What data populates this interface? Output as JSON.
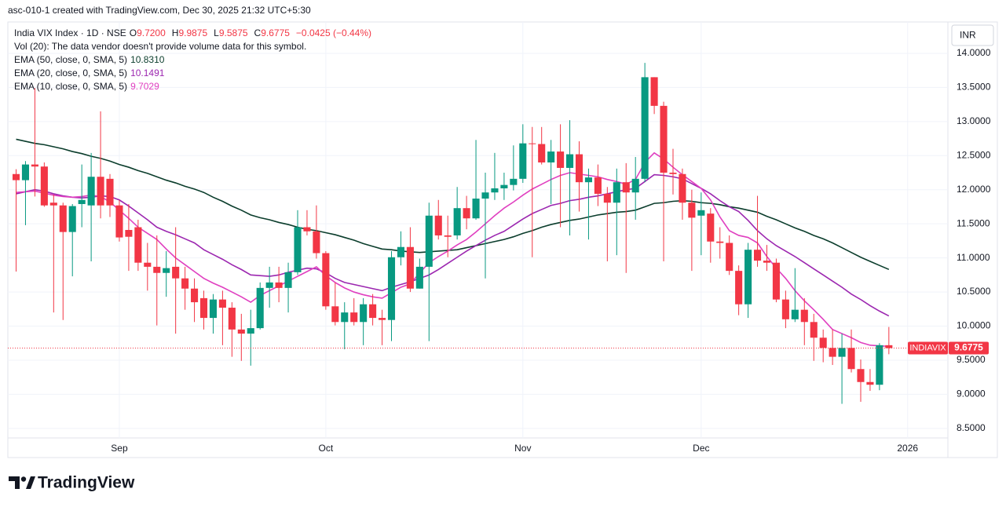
{
  "credit": "asc-010-1 created with TradingView.com, Dec 30, 2025 21:32 UTC+5:30",
  "brand": "TradingView",
  "chart_data": {
    "type": "candlestick",
    "header": {
      "symbol": "India VIX Index · 1D · NSE",
      "ohlc_keys": [
        "O",
        "H",
        "L",
        "C"
      ],
      "ohlc_values": [
        "9.7200",
        "9.9875",
        "9.5875",
        "9.6775"
      ],
      "change": "−0.0425 (−0.44%)",
      "volume_note": "Vol (20): The data vendor doesn't provide volume data for this symbol."
    },
    "currency": "INR",
    "ticker": "INDIAVIX",
    "last_label": "9.6775",
    "up_color": "#089981",
    "down_color": "#f23645",
    "grid": true,
    "xlim": [
      -0.88,
      99.29
    ],
    "ylim": [
      8.36,
      14.46
    ],
    "xticks": [
      {
        "value": 11,
        "label": "Sep"
      },
      {
        "value": 33,
        "label": "Oct"
      },
      {
        "value": 54,
        "label": "Nov"
      },
      {
        "value": 73,
        "label": "Dec"
      },
      {
        "value": 95,
        "label": "2026"
      }
    ],
    "yticks": [
      {
        "value": 14,
        "label": "14.0000"
      },
      {
        "value": 13.5,
        "label": "13.5000"
      },
      {
        "value": 13,
        "label": "13.0000"
      },
      {
        "value": 12.5,
        "label": "12.5000"
      },
      {
        "value": 12,
        "label": "12.0000"
      },
      {
        "value": 11.5,
        "label": "11.5000"
      },
      {
        "value": 11,
        "label": "11.0000"
      },
      {
        "value": 10.5,
        "label": "10.5000"
      },
      {
        "value": 10,
        "label": "10.0000"
      },
      {
        "value": 9.5,
        "label": "9.5000"
      },
      {
        "value": 9,
        "label": "9.0000"
      },
      {
        "value": 8.5,
        "label": "8.5000"
      }
    ],
    "open": [
      12.23,
      12.14,
      12.37,
      12.34,
      11.81,
      11.77,
      11.38,
      11.79,
      11.77,
      12.19,
      12.16,
      11.77,
      11.41,
      11.45,
      10.93,
      10.87,
      10.78,
      10.87,
      10.7,
      10.55,
      10.41,
      10.12,
      10.39,
      10.27,
      9.95,
      9.89,
      9.97,
      10.56,
      10.64,
      10.56,
      10.79,
      11.45,
      11.39,
      11.07,
      10.29,
      10.06,
      10.2,
      10.06,
      10.32,
      10.12,
      10.09,
      11.01,
      11.16,
      10.55,
      10.87,
      11.62,
      11.33,
      11.33,
      11.73,
      11.58,
      11.87,
      11.96,
      12.02,
      12.07,
      12.16,
      12.68,
      12.67,
      12.4,
      12.56,
      12.32,
      12.52,
      12.11,
      12.18,
      11.94,
      11.81,
      12.11,
      11.96,
      12.16,
      13.65,
      13.23,
      12.25,
      12.23,
      11.81,
      11.62,
      11.65,
      11.24,
      11.22,
      10.81,
      10.32,
      11.12,
      10.96,
      10.93,
      10.39,
      10.1,
      10.24,
      10.06,
      9.83,
      9.68,
      9.55,
      9.68,
      9.37,
      9.18,
      9.14,
      9.72
    ],
    "high": [
      12.3,
      12.42,
      13.49,
      12.4,
      11.93,
      11.81,
      11.79,
      12.37,
      12.54,
      13.15,
      12.23,
      11.85,
      11.79,
      11.56,
      11.22,
      11.33,
      11.1,
      11.45,
      10.87,
      10.7,
      10.52,
      10.47,
      10.52,
      10.35,
      10.18,
      10.24,
      10.64,
      10.87,
      10.87,
      10.93,
      11.7,
      11.7,
      11.77,
      11.1,
      10.64,
      10.35,
      10.41,
      10.41,
      10.47,
      10.24,
      11.1,
      11.39,
      11.45,
      10.99,
      11.81,
      11.85,
      11.62,
      12.04,
      11.91,
      12.73,
      12.25,
      12.54,
      12.25,
      12.65,
      12.96,
      12.92,
      12.92,
      12.73,
      12.96,
      13.02,
      12.71,
      12.31,
      12.37,
      12.04,
      12.31,
      12.39,
      12.48,
      13.86,
      13.65,
      13.29,
      12.6,
      12.31,
      12.0,
      11.96,
      11.73,
      11.45,
      11.33,
      10.89,
      11.22,
      11.91,
      11.19,
      10.99,
      10.52,
      10.85,
      10.41,
      10.18,
      9.95,
      9.95,
      9.89,
      9.95,
      9.51,
      9.37,
      9.75,
      9.9875
    ],
    "low": [
      10.8,
      11.48,
      11.9,
      11.75,
      10.2,
      10.09,
      10.73,
      11.45,
      10.95,
      11.58,
      11.6,
      11.24,
      10.81,
      10.81,
      10.52,
      10.01,
      10.43,
      9.89,
      10.24,
      10.06,
      9.95,
      9.89,
      9.72,
      9.55,
      9.49,
      9.42,
      9.95,
      10.27,
      10.35,
      10.2,
      10.75,
      11.33,
      10.99,
      10.24,
      10.01,
      9.66,
      10.01,
      9.72,
      10.01,
      9.72,
      9.78,
      10.89,
      10.5,
      10.55,
      9.78,
      11.27,
      11.01,
      11.27,
      11.42,
      11.56,
      10.7,
      11.85,
      11.85,
      11.99,
      12.1,
      11.01,
      12.37,
      11.79,
      11.45,
      11.33,
      11.68,
      11.27,
      11.76,
      10.95,
      11.04,
      10.78,
      11.56,
      12.11,
      13.11,
      10.95,
      11.93,
      11.56,
      10.81,
      11.04,
      10.93,
      10.99,
      10.75,
      10.16,
      10.12,
      10.87,
      10.81,
      10.35,
      9.97,
      10.06,
      9.72,
      9.49,
      9.47,
      9.43,
      8.86,
      9.32,
      8.89,
      9.05,
      9.06,
      9.5875
    ],
    "close": [
      12.14,
      12.37,
      12.34,
      11.77,
      11.77,
      11.38,
      11.76,
      11.85,
      12.19,
      11.77,
      11.77,
      11.3,
      11.31,
      10.93,
      10.87,
      10.78,
      10.85,
      10.7,
      10.55,
      10.35,
      10.12,
      10.39,
      10.27,
      9.95,
      9.89,
      9.97,
      10.56,
      10.64,
      10.56,
      10.79,
      11.45,
      11.39,
      11.07,
      10.29,
      10.06,
      10.2,
      10.06,
      10.32,
      10.12,
      10.09,
      11.01,
      11.16,
      10.55,
      10.87,
      11.62,
      11.33,
      11.31,
      11.73,
      11.58,
      11.87,
      11.96,
      12.02,
      12.07,
      12.16,
      12.68,
      12.67,
      12.4,
      12.56,
      12.32,
      12.52,
      12.11,
      12.18,
      11.94,
      11.81,
      12.11,
      11.96,
      12.16,
      13.65,
      13.23,
      12.25,
      12.23,
      11.81,
      11.59,
      11.7,
      11.24,
      11.22,
      10.81,
      10.32,
      11.12,
      10.96,
      10.93,
      10.39,
      10.1,
      10.24,
      10.06,
      9.83,
      9.68,
      9.55,
      9.68,
      9.37,
      9.18,
      9.14,
      9.72,
      9.6775
    ],
    "series": [
      {
        "name": "EMA (50, close, 0, SMA, 5)",
        "color": "#0b3d2c",
        "last_label": "10.8310",
        "values": [
          12.74,
          12.71,
          12.68,
          12.66,
          12.63,
          12.6,
          12.56,
          12.53,
          12.49,
          12.46,
          12.42,
          12.37,
          12.33,
          12.28,
          12.24,
          12.19,
          12.14,
          12.1,
          12.05,
          12.01,
          11.96,
          11.89,
          11.83,
          11.76,
          11.7,
          11.63,
          11.59,
          11.56,
          11.52,
          11.49,
          11.45,
          11.42,
          11.4,
          11.37,
          11.34,
          11.3,
          11.26,
          11.21,
          11.17,
          11.13,
          11.12,
          11.1,
          11.09,
          11.08,
          11.09,
          11.1,
          11.11,
          11.12,
          11.15,
          11.18,
          11.21,
          11.24,
          11.27,
          11.31,
          11.36,
          11.4,
          11.45,
          11.49,
          11.52,
          11.55,
          11.57,
          11.6,
          11.63,
          11.65,
          11.67,
          11.68,
          11.7,
          11.75,
          11.8,
          11.81,
          11.83,
          11.84,
          11.83,
          11.81,
          11.8,
          11.78,
          11.75,
          11.73,
          11.7,
          11.67,
          11.61,
          11.56,
          11.5,
          11.44,
          11.39,
          11.33,
          11.28,
          11.22,
          11.15,
          11.08,
          11.01,
          10.95,
          10.89,
          10.831
        ]
      },
      {
        "name": "EMA (20, close, 0, SMA, 5)",
        "color": "#9c27b0",
        "last_label": "10.1491",
        "values": [
          11.94,
          11.97,
          12.0,
          11.98,
          11.94,
          11.91,
          11.89,
          11.88,
          11.89,
          11.91,
          11.9,
          11.85,
          11.76,
          11.66,
          11.56,
          11.45,
          11.39,
          11.34,
          11.28,
          11.22,
          11.12,
          11.05,
          10.98,
          10.9,
          10.83,
          10.75,
          10.74,
          10.73,
          10.75,
          10.79,
          10.82,
          10.85,
          10.84,
          10.78,
          10.7,
          10.64,
          10.61,
          10.58,
          10.55,
          10.52,
          10.57,
          10.61,
          10.65,
          10.7,
          10.75,
          10.83,
          10.92,
          11.01,
          11.1,
          11.18,
          11.26,
          11.33,
          11.39,
          11.48,
          11.57,
          11.65,
          11.71,
          11.77,
          11.8,
          11.84,
          11.86,
          11.89,
          11.91,
          11.94,
          11.97,
          12.0,
          12.02,
          12.12,
          12.22,
          12.21,
          12.19,
          12.16,
          12.09,
          12.02,
          11.94,
          11.84,
          11.75,
          11.68,
          11.55,
          11.4,
          11.28,
          11.18,
          11.1,
          11.02,
          10.93,
          10.84,
          10.75,
          10.66,
          10.57,
          10.47,
          10.39,
          10.3,
          10.22,
          10.1491
        ]
      },
      {
        "name": "EMA (10, close, 0, SMA, 5)",
        "color": "#e040c0",
        "last_label": "9.7029",
        "values": [
          11.96,
          11.97,
          11.98,
          11.95,
          11.92,
          11.9,
          11.89,
          11.9,
          11.92,
          11.9,
          11.82,
          11.7,
          11.58,
          11.45,
          11.36,
          11.27,
          11.13,
          11.0,
          10.9,
          10.8,
          10.7,
          10.63,
          10.57,
          10.5,
          10.43,
          10.35,
          10.45,
          10.52,
          10.59,
          10.66,
          10.73,
          10.8,
          10.87,
          10.74,
          10.64,
          10.56,
          10.5,
          10.46,
          10.43,
          10.41,
          10.49,
          10.57,
          10.62,
          10.78,
          10.93,
          11.02,
          11.1,
          11.19,
          11.27,
          11.38,
          11.5,
          11.62,
          11.73,
          11.82,
          11.92,
          12.01,
          12.08,
          12.15,
          12.21,
          12.25,
          12.23,
          12.21,
          12.19,
          12.15,
          12.12,
          12.08,
          12.15,
          12.4,
          12.54,
          12.45,
          12.33,
          12.22,
          12.12,
          12.02,
          11.85,
          11.6,
          11.4,
          11.33,
          11.3,
          11.22,
          11.02,
          10.85,
          10.7,
          10.52,
          10.37,
          10.24,
          10.1,
          9.95,
          9.89,
          9.83,
          9.76,
          9.72,
          9.71,
          9.7029
        ]
      }
    ]
  }
}
